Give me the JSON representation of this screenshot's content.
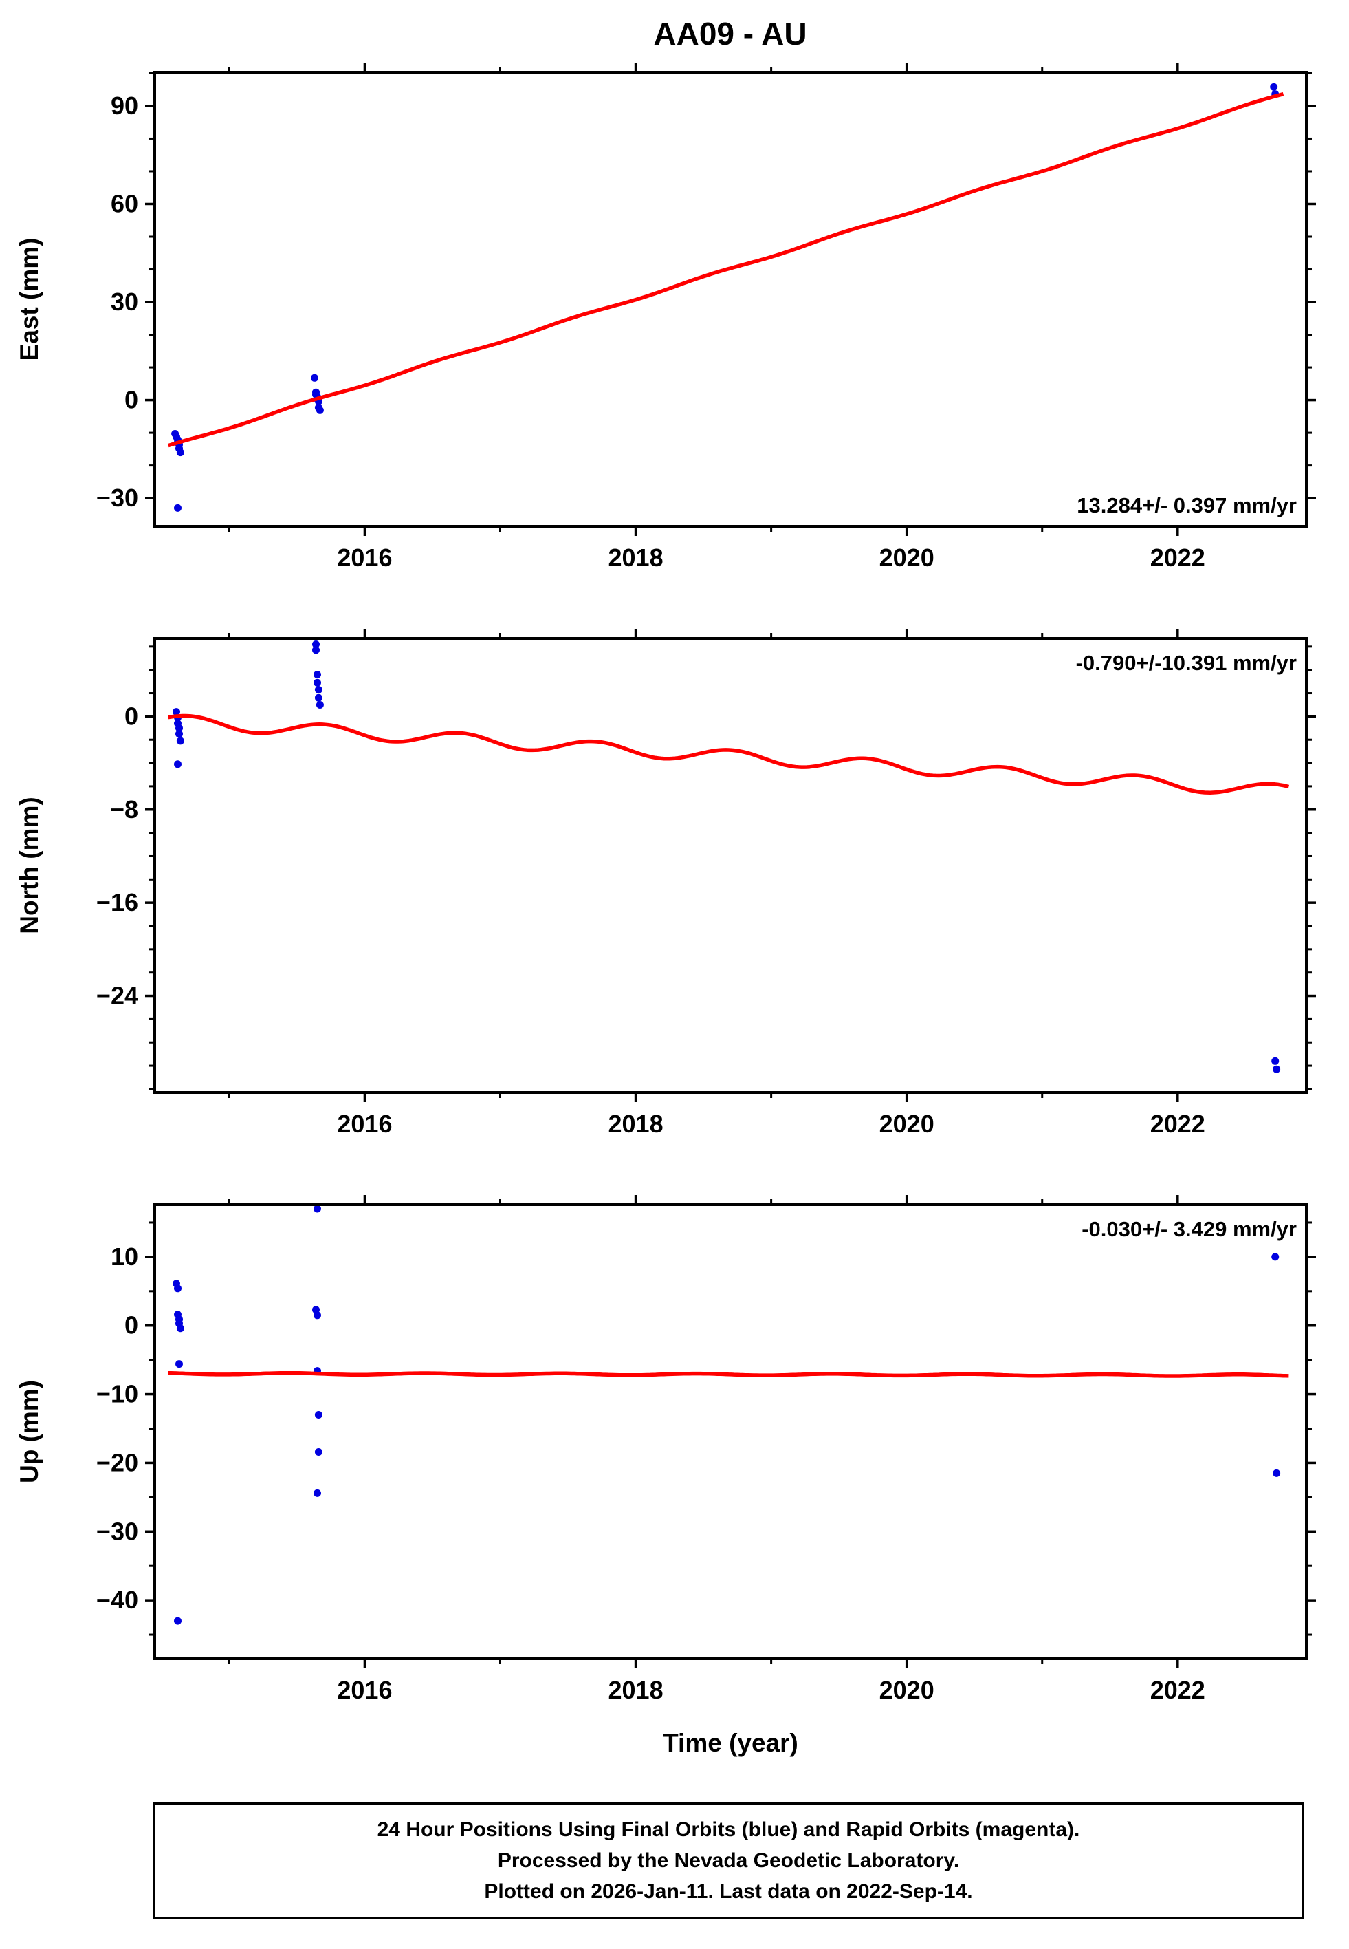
{
  "title": "AA09 - AU",
  "colors": {
    "point": "#0000e0",
    "trend": "#ff0000",
    "frame": "#000000",
    "text": "#000000"
  },
  "footer": {
    "line1": "24 Hour Positions Using Final Orbits (blue) and Rapid Orbits (magenta).",
    "line2": "Processed by the Nevada Geodetic Laboratory.",
    "line3": "Plotted on 2026-Jan-11. Last data on 2022-Sep-14."
  },
  "chart_data": [
    {
      "type": "scatter",
      "name": "east",
      "ylabel": "East (mm)",
      "annotation": "13.284+/- 0.397 mm/yr",
      "annotation_pos": "bottom-right",
      "xlim": [
        2014.45,
        2022.95
      ],
      "ylim": [
        -38.6,
        100.3
      ],
      "xticks": [
        2016,
        2018,
        2020,
        2022
      ],
      "xtick_minor_step": 1,
      "yticks": [
        -30,
        0,
        30,
        60,
        90
      ],
      "ytick_minor_step": 10,
      "xlabel": null,
      "points": {
        "x": [
          2014.6,
          2014.61,
          2014.62,
          2014.62,
          2014.63,
          2014.63,
          2014.64,
          2014.62,
          2015.63,
          2015.64,
          2015.64,
          2015.65,
          2015.65,
          2015.66,
          2015.66,
          2015.67,
          2022.71,
          2022.72
        ],
        "y": [
          -10.3,
          -11.2,
          -12.1,
          -12.9,
          -13.6,
          -14.8,
          -16.0,
          -33.0,
          6.8,
          2.4,
          1.7,
          1.0,
          0.3,
          -0.4,
          -2.3,
          -3.1,
          95.8,
          93.6
        ]
      },
      "trend": {
        "kind": "linear_seasonal",
        "x_start": 2014.55,
        "x_end": 2022.78,
        "y_start": -14.2,
        "slope_mm_per_yr": 13.1,
        "seasonal_amplitude": 0.3,
        "seasonal_phase": 0.3
      }
    },
    {
      "type": "scatter",
      "name": "north",
      "ylabel": "North (mm)",
      "annotation": "-0.790+/-10.391 mm/yr",
      "annotation_pos": "top-right",
      "xlim": [
        2014.45,
        2022.95
      ],
      "ylim": [
        -32.3,
        6.7
      ],
      "xticks": [
        2016,
        2018,
        2020,
        2022
      ],
      "xtick_minor_step": 1,
      "yticks": [
        -24,
        -16,
        -8,
        0
      ],
      "ytick_minor_step": 2,
      "xlabel": null,
      "points": {
        "x": [
          2014.61,
          2014.62,
          2014.62,
          2014.63,
          2014.63,
          2014.64,
          2014.62,
          2015.64,
          2015.64,
          2015.65,
          2015.65,
          2015.66,
          2015.66,
          2015.67,
          2022.72,
          2022.73
        ],
        "y": [
          0.4,
          -0.1,
          -0.6,
          -1.0,
          -1.5,
          -2.1,
          -4.1,
          6.2,
          5.7,
          3.6,
          2.9,
          2.3,
          1.6,
          1.0,
          -29.6,
          -30.3
        ]
      },
      "trend": {
        "kind": "linear_seasonal",
        "x_start": 2014.55,
        "x_end": 2022.82,
        "y_start": -0.4,
        "slope_mm_per_yr": -0.73,
        "seasonal_amplitude": 0.55,
        "seasonal_phase": 0.45
      }
    },
    {
      "type": "scatter",
      "name": "up",
      "ylabel": "Up (mm)",
      "annotation": "-0.030+/- 3.429 mm/yr",
      "annotation_pos": "top-right",
      "xlim": [
        2014.45,
        2022.95
      ],
      "ylim": [
        -48.5,
        17.6
      ],
      "xticks": [
        2016,
        2018,
        2020,
        2022
      ],
      "xtick_minor_step": 1,
      "yticks": [
        -40,
        -30,
        -20,
        -10,
        0,
        10
      ],
      "ytick_minor_step": 5,
      "xlabel": "Time (year)",
      "points": {
        "x": [
          2014.61,
          2014.62,
          2014.62,
          2014.63,
          2014.63,
          2014.64,
          2014.63,
          2014.62,
          2015.65,
          2015.64,
          2015.65,
          2015.65,
          2015.66,
          2015.66,
          2015.65,
          2022.72,
          2022.73
        ],
        "y": [
          6.1,
          5.4,
          1.6,
          0.9,
          0.3,
          -0.4,
          -5.6,
          -43.0,
          17.0,
          2.3,
          1.5,
          -6.6,
          -13.0,
          -18.4,
          -24.4,
          10.0,
          -21.5
        ]
      },
      "trend": {
        "kind": "linear_seasonal",
        "x_start": 2014.55,
        "x_end": 2022.82,
        "y_start": -7.0,
        "slope_mm_per_yr": -0.03,
        "seasonal_amplitude": 0.12,
        "seasonal_phase": 0.2
      }
    }
  ]
}
